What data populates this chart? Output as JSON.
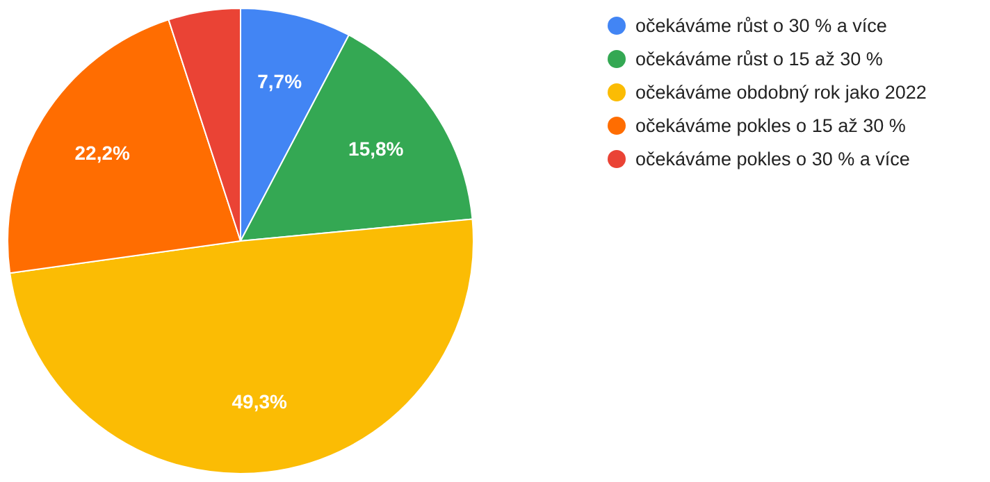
{
  "chart_data": {
    "type": "pie",
    "categories": [
      "očekáváme růst o 30 % a více",
      "očekáváme růst o 15 až 30 %",
      "očekáváme obdobný rok jako 2022",
      "očekáváme pokles o 15 až 30 %",
      "očekáváme pokles o 30 % a více"
    ],
    "values": [
      7.7,
      15.8,
      49.3,
      22.2,
      5.0
    ],
    "colors": [
      "#4285f4",
      "#34a853",
      "#fbbc04",
      "#ff6d01",
      "#ea4335"
    ],
    "value_labels": [
      "7,7%",
      "15,8%",
      "49,3%",
      "22,2%",
      null
    ],
    "legend": "top right"
  }
}
